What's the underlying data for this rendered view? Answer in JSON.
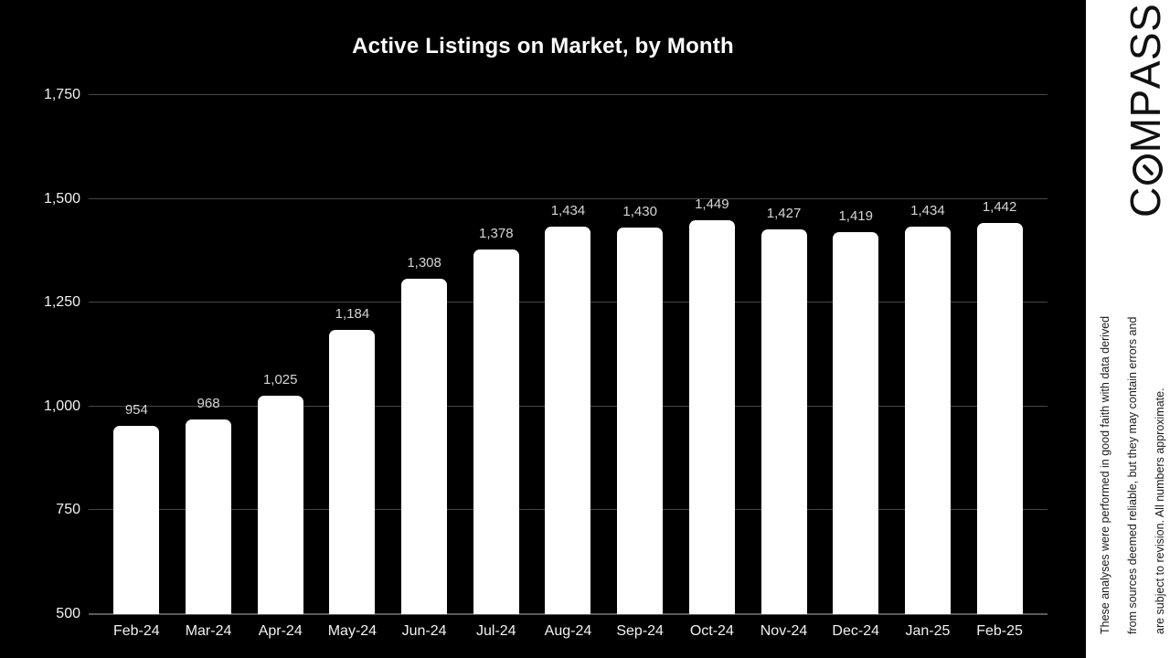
{
  "chart_data": {
    "type": "bar",
    "title": "Active Listings on Market, by Month",
    "categories": [
      "Feb-24",
      "Mar-24",
      "Apr-24",
      "May-24",
      "Jun-24",
      "Jul-24",
      "Aug-24",
      "Sep-24",
      "Oct-24",
      "Nov-24",
      "Dec-24",
      "Jan-25",
      "Feb-25"
    ],
    "values": [
      954,
      968,
      1025,
      1184,
      1308,
      1378,
      1434,
      1430,
      1449,
      1427,
      1419,
      1434,
      1442
    ],
    "xlabel": "",
    "ylabel": "",
    "ylim": [
      500,
      1750
    ],
    "ytick_step": 250,
    "grid": true,
    "legend_position": "none",
    "colors": {
      "background": "#000000",
      "bar_fill": "#ffffff",
      "gridline": "#474747",
      "baseline": "#5a5a5a",
      "axis_text": "#f2f2f2",
      "data_label": "#d6d6d6",
      "title_text": "#ffffff"
    }
  },
  "brand": {
    "logo_text": "COMPASS",
    "logo_icon": "slashed-o-compass-needle-icon",
    "logo_color": "#111111",
    "strip_background": "#ffffff",
    "disclaimer_lines": [
      "These analyses were performed in good faith with data derived",
      "from sources deemed reliable, but they may contain errors and",
      "are subject to revision. All numbers approximate."
    ]
  }
}
